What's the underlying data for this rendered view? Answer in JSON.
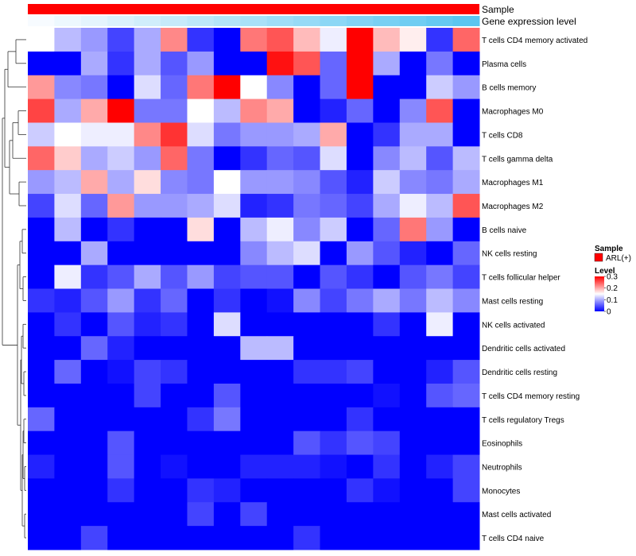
{
  "chart_data": {
    "type": "heatmap",
    "title": "",
    "annotation_tracks": [
      {
        "name": "Sample",
        "color": "#ff0000"
      },
      {
        "name": "Gene expression level",
        "low_color": "#f7fbff",
        "high_color": "#5bc6f0"
      }
    ],
    "rows": [
      "T cells CD4 memory activated",
      "Plasma cells",
      "B cells memory",
      "Macrophages M0",
      "T cells CD8",
      "T cells gamma delta",
      "Macrophages M1",
      "Macrophages M2",
      "B cells naive",
      "NK cells resting",
      "T cells follicular helper",
      "Mast cells resting",
      "NK cells activated",
      "Dendritic cells activated",
      "Dendritic cells resting",
      "T cells CD4 memory resting",
      "T cells regulatory  Tregs",
      "Eosinophils",
      "Neutrophils",
      "Monocytes",
      "Mast cells activated",
      "T cells CD4 naive"
    ],
    "values": [
      [
        0.15,
        0.11,
        0.09,
        0.04,
        0.1,
        0.22,
        0.03,
        0.0,
        0.23,
        0.25,
        0.19,
        0.14,
        0.3,
        0.19,
        0.16,
        0.03,
        0.24
      ],
      [
        0.0,
        0.0,
        0.1,
        0.03,
        0.1,
        0.05,
        0.09,
        0.0,
        0.0,
        0.29,
        0.25,
        0.06,
        0.3,
        0.1,
        0.0,
        0.07,
        0.0
      ],
      [
        0.21,
        0.08,
        0.07,
        0.0,
        0.13,
        0.06,
        0.23,
        0.3,
        0.15,
        0.08,
        0.0,
        0.06,
        0.3,
        0.0,
        0.0,
        0.12,
        0.09
      ],
      [
        0.26,
        0.1,
        0.2,
        0.3,
        0.07,
        0.07,
        0.15,
        0.11,
        0.22,
        0.2,
        0.0,
        0.02,
        0.06,
        0.0,
        0.08,
        0.25,
        0.0
      ],
      [
        0.12,
        0.15,
        0.14,
        0.14,
        0.22,
        0.27,
        0.13,
        0.07,
        0.09,
        0.09,
        0.1,
        0.2,
        0.0,
        0.03,
        0.1,
        0.1,
        0.0
      ],
      [
        0.24,
        0.18,
        0.1,
        0.12,
        0.09,
        0.24,
        0.07,
        0.0,
        0.03,
        0.06,
        0.05,
        0.13,
        0.0,
        0.08,
        0.11,
        0.05,
        0.11
      ],
      [
        0.09,
        0.11,
        0.2,
        0.1,
        0.17,
        0.08,
        0.07,
        0.15,
        0.09,
        0.09,
        0.08,
        0.05,
        0.02,
        0.12,
        0.08,
        0.07,
        0.1
      ],
      [
        0.04,
        0.13,
        0.06,
        0.21,
        0.09,
        0.09,
        0.1,
        0.13,
        0.02,
        0.03,
        0.07,
        0.06,
        0.04,
        0.1,
        0.14,
        0.11,
        0.25
      ],
      [
        0.0,
        0.11,
        0.0,
        0.03,
        0.0,
        0.0,
        0.17,
        0.0,
        0.11,
        0.14,
        0.08,
        0.12,
        0.0,
        0.06,
        0.23,
        0.09,
        0.0
      ],
      [
        0.0,
        0.0,
        0.1,
        0.0,
        0.0,
        0.0,
        0.0,
        0.0,
        0.08,
        0.11,
        0.13,
        0.0,
        0.09,
        0.05,
        0.02,
        0.0,
        0.06
      ],
      [
        0.0,
        0.14,
        0.03,
        0.05,
        0.1,
        0.05,
        0.09,
        0.04,
        0.05,
        0.05,
        0.0,
        0.05,
        0.03,
        0.0,
        0.05,
        0.07,
        0.04
      ],
      [
        0.03,
        0.02,
        0.05,
        0.09,
        0.03,
        0.06,
        0.0,
        0.03,
        0.0,
        0.01,
        0.08,
        0.04,
        0.07,
        0.1,
        0.07,
        0.11,
        0.08
      ],
      [
        0.0,
        0.03,
        0.0,
        0.05,
        0.02,
        0.03,
        0.0,
        0.13,
        0.0,
        0.0,
        0.0,
        0.0,
        0.0,
        0.03,
        0.0,
        0.14,
        0.0
      ],
      [
        0.0,
        0.0,
        0.06,
        0.02,
        0.0,
        0.0,
        0.0,
        0.0,
        0.11,
        0.11,
        0.0,
        0.0,
        0.0,
        0.0,
        0.0,
        0.0,
        0.0
      ],
      [
        0.0,
        0.06,
        0.0,
        0.01,
        0.04,
        0.03,
        0.0,
        0.0,
        0.0,
        0.0,
        0.03,
        0.03,
        0.04,
        0.0,
        0.0,
        0.02,
        0.05
      ],
      [
        0.0,
        0.0,
        0.0,
        0.0,
        0.04,
        0.0,
        0.0,
        0.05,
        0.0,
        0.0,
        0.0,
        0.0,
        0.0,
        0.01,
        0.0,
        0.05,
        0.06
      ],
      [
        0.06,
        0.0,
        0.0,
        0.0,
        0.0,
        0.0,
        0.03,
        0.07,
        0.0,
        0.0,
        0.0,
        0.0,
        0.03,
        0.0,
        0.0,
        0.0,
        0.0
      ],
      [
        0.0,
        0.0,
        0.0,
        0.05,
        0.0,
        0.0,
        0.0,
        0.0,
        0.0,
        0.0,
        0.05,
        0.03,
        0.05,
        0.04,
        0.0,
        0.0,
        0.0
      ],
      [
        0.02,
        0.0,
        0.0,
        0.05,
        0.0,
        0.01,
        0.0,
        0.0,
        0.02,
        0.02,
        0.02,
        0.01,
        0.0,
        0.03,
        0.0,
        0.02,
        0.04
      ],
      [
        0.0,
        0.0,
        0.0,
        0.03,
        0.0,
        0.0,
        0.03,
        0.02,
        0.0,
        0.0,
        0.0,
        0.0,
        0.03,
        0.01,
        0.0,
        0.0,
        0.04
      ],
      [
        0.0,
        0.0,
        0.0,
        0.0,
        0.0,
        0.0,
        0.04,
        0.0,
        0.04,
        0.0,
        0.0,
        0.0,
        0.0,
        0.0,
        0.0,
        0.0,
        0.0
      ],
      [
        0.0,
        0.0,
        0.04,
        0.0,
        0.0,
        0.0,
        0.0,
        0.0,
        0.0,
        0.0,
        0.03,
        0.0,
        0.0,
        0.0,
        0.0,
        0.0,
        0.0
      ]
    ],
    "column_count": 17,
    "color_scale": {
      "min": 0,
      "mid": 0.15,
      "max": 0.3,
      "low_color": "#0000ff",
      "mid_color": "#ffffff",
      "high_color": "#ff0000"
    },
    "legend": {
      "placement": "right",
      "sample": {
        "title": "Sample",
        "label": "ARL(+)",
        "color": "#ff0000"
      },
      "level": {
        "title": "Level",
        "ticks": [
          "0.3",
          "0.2",
          "0.1",
          "0"
        ],
        "tick_values": [
          0.3,
          0.2,
          0.1,
          0
        ]
      }
    },
    "dendrogram": "rows"
  }
}
